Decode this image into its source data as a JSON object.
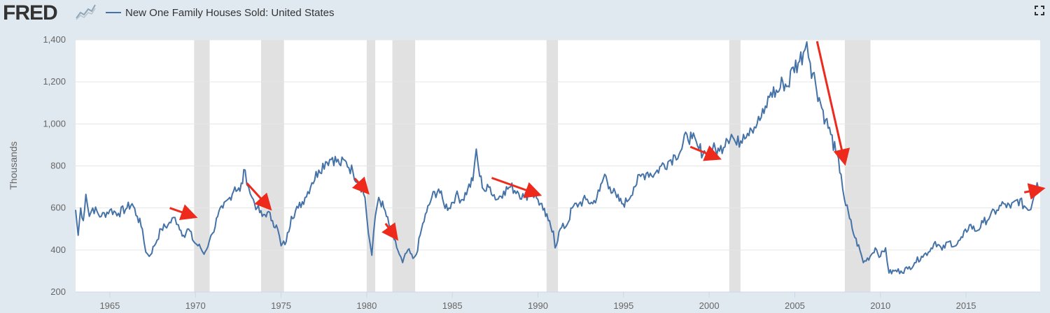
{
  "header": {
    "logo_text": "FRED",
    "series_title": "New One Family Houses Sold: United States"
  },
  "colors": {
    "series": "#4572a7",
    "recession": "#e1e1e1",
    "arrow": "#ee2a1c",
    "background": "#e1e9f0"
  },
  "icons": {
    "logo_graph": "trend-graph-icon",
    "fullscreen": "fullscreen-icon"
  },
  "chart_data": {
    "type": "line",
    "title": "New One Family Houses Sold: United States",
    "ylabel": "Thousands",
    "xlabel": "",
    "xlim": [
      1963.0,
      2019.33
    ],
    "ylim": [
      200,
      1400
    ],
    "x_ticks": [
      1965,
      1970,
      1975,
      1980,
      1985,
      1990,
      1995,
      2000,
      2005,
      2010,
      2015
    ],
    "y_ticks": [
      200,
      400,
      600,
      800,
      1000,
      1200,
      1400
    ],
    "y_tick_labels": [
      "200",
      "400",
      "600",
      "800",
      "1,000",
      "1,200",
      "1,400"
    ],
    "grid": "horizontal",
    "recessions": [
      [
        1969.92,
        1970.83
      ],
      [
        1973.83,
        1975.17
      ],
      [
        1980.0,
        1980.5
      ],
      [
        1981.5,
        1982.83
      ],
      [
        1990.5,
        1991.17
      ],
      [
        2001.17,
        2001.83
      ],
      [
        2007.92,
        2009.42
      ]
    ],
    "series": [
      {
        "name": "New One Family Houses Sold: United States",
        "points": [
          [
            1963.0,
            591
          ],
          [
            1963.15,
            470
          ],
          [
            1963.3,
            600
          ],
          [
            1963.45,
            540
          ],
          [
            1963.6,
            665
          ],
          [
            1963.8,
            560
          ],
          [
            1964.0,
            600
          ],
          [
            1964.5,
            560
          ],
          [
            1965.0,
            590
          ],
          [
            1965.5,
            575
          ],
          [
            1966.0,
            600
          ],
          [
            1966.3,
            620
          ],
          [
            1966.6,
            560
          ],
          [
            1966.9,
            500
          ],
          [
            1967.1,
            390
          ],
          [
            1967.3,
            370
          ],
          [
            1967.6,
            420
          ],
          [
            1968.0,
            500
          ],
          [
            1968.4,
            520
          ],
          [
            1968.8,
            555
          ],
          [
            1969.0,
            520
          ],
          [
            1969.3,
            470
          ],
          [
            1969.6,
            500
          ],
          [
            1969.9,
            440
          ],
          [
            1970.3,
            410
          ],
          [
            1970.5,
            380
          ],
          [
            1970.8,
            440
          ],
          [
            1971.0,
            480
          ],
          [
            1971.3,
            560
          ],
          [
            1971.6,
            600
          ],
          [
            1972.0,
            650
          ],
          [
            1972.3,
            700
          ],
          [
            1972.6,
            680
          ],
          [
            1972.9,
            780
          ],
          [
            1973.1,
            700
          ],
          [
            1973.3,
            650
          ],
          [
            1973.6,
            600
          ],
          [
            1973.9,
            560
          ],
          [
            1974.2,
            580
          ],
          [
            1974.5,
            540
          ],
          [
            1974.8,
            500
          ],
          [
            1975.0,
            420
          ],
          [
            1975.3,
            440
          ],
          [
            1975.6,
            560
          ],
          [
            1976.0,
            600
          ],
          [
            1976.4,
            650
          ],
          [
            1976.8,
            720
          ],
          [
            1977.2,
            780
          ],
          [
            1977.6,
            820
          ],
          [
            1978.0,
            840
          ],
          [
            1978.4,
            810
          ],
          [
            1978.8,
            820
          ],
          [
            1979.2,
            770
          ],
          [
            1979.6,
            720
          ],
          [
            1979.9,
            650
          ],
          [
            1980.1,
            480
          ],
          [
            1980.3,
            375
          ],
          [
            1980.5,
            560
          ],
          [
            1980.7,
            650
          ],
          [
            1981.0,
            600
          ],
          [
            1981.3,
            520
          ],
          [
            1981.6,
            450
          ],
          [
            1981.9,
            380
          ],
          [
            1982.1,
            340
          ],
          [
            1982.4,
            400
          ],
          [
            1982.7,
            360
          ],
          [
            1982.9,
            380
          ],
          [
            1983.2,
            500
          ],
          [
            1983.5,
            580
          ],
          [
            1983.8,
            650
          ],
          [
            1984.2,
            690
          ],
          [
            1984.5,
            620
          ],
          [
            1984.8,
            600
          ],
          [
            1985.2,
            660
          ],
          [
            1985.6,
            640
          ],
          [
            1985.9,
            690
          ],
          [
            1986.2,
            730
          ],
          [
            1986.4,
            880
          ],
          [
            1986.6,
            750
          ],
          [
            1986.9,
            680
          ],
          [
            1987.2,
            700
          ],
          [
            1987.6,
            640
          ],
          [
            1988.0,
            680
          ],
          [
            1988.4,
            700
          ],
          [
            1988.8,
            680
          ],
          [
            1989.2,
            650
          ],
          [
            1989.6,
            680
          ],
          [
            1990.0,
            640
          ],
          [
            1990.3,
            590
          ],
          [
            1990.6,
            540
          ],
          [
            1990.9,
            490
          ],
          [
            1991.0,
            410
          ],
          [
            1991.3,
            500
          ],
          [
            1991.7,
            520
          ],
          [
            1992.0,
            600
          ],
          [
            1992.4,
            620
          ],
          [
            1992.8,
            640
          ],
          [
            1993.2,
            620
          ],
          [
            1993.6,
            680
          ],
          [
            1993.9,
            760
          ],
          [
            1994.2,
            700
          ],
          [
            1994.6,
            650
          ],
          [
            1994.9,
            620
          ],
          [
            1995.2,
            630
          ],
          [
            1995.6,
            700
          ],
          [
            1996.0,
            750
          ],
          [
            1996.4,
            770
          ],
          [
            1996.8,
            760
          ],
          [
            1997.2,
            800
          ],
          [
            1997.6,
            820
          ],
          [
            1998.0,
            850
          ],
          [
            1998.4,
            880
          ],
          [
            1998.7,
            950
          ],
          [
            1999.0,
            930
          ],
          [
            1999.4,
            880
          ],
          [
            1999.8,
            860
          ],
          [
            2000.2,
            880
          ],
          [
            2000.6,
            870
          ],
          [
            2001.0,
            930
          ],
          [
            2001.3,
            950
          ],
          [
            2001.6,
            900
          ],
          [
            2002.0,
            950
          ],
          [
            2002.4,
            980
          ],
          [
            2002.8,
            1000
          ],
          [
            2003.2,
            1050
          ],
          [
            2003.6,
            1150
          ],
          [
            2004.0,
            1150
          ],
          [
            2004.3,
            1200
          ],
          [
            2004.6,
            1180
          ],
          [
            2004.9,
            1270
          ],
          [
            2005.2,
            1290
          ],
          [
            2005.5,
            1340
          ],
          [
            2005.7,
            1390
          ],
          [
            2005.9,
            1290
          ],
          [
            2006.2,
            1200
          ],
          [
            2006.5,
            1100
          ],
          [
            2006.8,
            1020
          ],
          [
            2007.1,
            950
          ],
          [
            2007.4,
            860
          ],
          [
            2007.7,
            760
          ],
          [
            2007.9,
            640
          ],
          [
            2008.2,
            550
          ],
          [
            2008.5,
            460
          ],
          [
            2008.8,
            400
          ],
          [
            2009.0,
            340
          ],
          [
            2009.4,
            370
          ],
          [
            2009.7,
            410
          ],
          [
            2010.0,
            370
          ],
          [
            2010.3,
            410
          ],
          [
            2010.5,
            290
          ],
          [
            2010.8,
            300
          ],
          [
            2011.2,
            300
          ],
          [
            2011.6,
            310
          ],
          [
            2012.0,
            340
          ],
          [
            2012.4,
            370
          ],
          [
            2012.8,
            390
          ],
          [
            2013.2,
            440
          ],
          [
            2013.6,
            400
          ],
          [
            2014.0,
            440
          ],
          [
            2014.4,
            420
          ],
          [
            2014.8,
            460
          ],
          [
            2015.2,
            520
          ],
          [
            2015.6,
            490
          ],
          [
            2016.0,
            530
          ],
          [
            2016.4,
            560
          ],
          [
            2016.8,
            590
          ],
          [
            2017.2,
            620
          ],
          [
            2017.6,
            600
          ],
          [
            2018.0,
            640
          ],
          [
            2018.4,
            610
          ],
          [
            2018.7,
            590
          ],
          [
            2018.95,
            650
          ],
          [
            2019.15,
            720
          ],
          [
            2019.33,
            680
          ]
        ]
      }
    ],
    "annotations": {
      "type": "arrows",
      "arrows": [
        [
          [
            1968.5,
            600
          ],
          [
            1969.9,
            560
          ]
        ],
        [
          [
            1973.0,
            718
          ],
          [
            1974.3,
            602
          ]
        ],
        [
          [
            1979.3,
            741
          ],
          [
            1980.0,
            678
          ]
        ],
        [
          [
            1981.1,
            526
          ],
          [
            1981.7,
            460
          ]
        ],
        [
          [
            1987.3,
            743
          ],
          [
            1990.0,
            665
          ]
        ],
        [
          [
            1998.9,
            891
          ],
          [
            2000.5,
            838
          ]
        ],
        [
          [
            2006.3,
            1393
          ],
          [
            2007.9,
            820
          ]
        ],
        [
          [
            2018.4,
            674
          ],
          [
            2019.4,
            691
          ]
        ]
      ]
    }
  }
}
